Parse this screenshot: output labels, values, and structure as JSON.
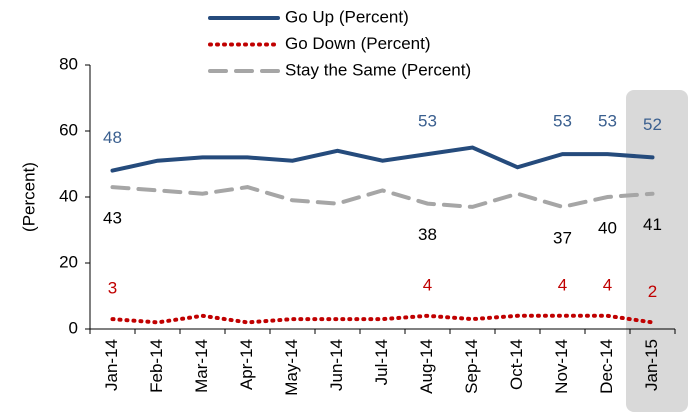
{
  "chart_data": {
    "type": "line",
    "y_label": "(Percent)",
    "categories": [
      "Jan-14",
      "Feb-14",
      "Mar-14",
      "Apr-14",
      "May-14",
      "Jun-14",
      "Jul-14",
      "Aug-14",
      "Sep-14",
      "Oct-14",
      "Nov-14",
      "Dec-14",
      "Jan-15"
    ],
    "series": [
      {
        "name": "Go Up (Percent)",
        "color": "#254b7c",
        "label_color": "#3a5f8f",
        "dash": "solid",
        "values": [
          48,
          51,
          52,
          52,
          51,
          54,
          51,
          53,
          55,
          49,
          53,
          53,
          52
        ]
      },
      {
        "name": "Go Down (Percent)",
        "color": "#c00000",
        "label_color": "#c00000",
        "dash": "dotted",
        "values": [
          3,
          2,
          4,
          2,
          3,
          3,
          3,
          4,
          3,
          4,
          4,
          4,
          2
        ]
      },
      {
        "name": "Stay the Same (Percent)",
        "color": "#a6a6a6",
        "label_color": "#000000",
        "dash": "dashed",
        "values": [
          43,
          42,
          41,
          43,
          39,
          38,
          42,
          38,
          37,
          41,
          37,
          40,
          41
        ]
      }
    ],
    "labeled_points": [
      0,
      7,
      10,
      11,
      12
    ],
    "ylim": [
      0,
      80
    ],
    "yticks": [
      0,
      20,
      40,
      60,
      80
    ],
    "grid": false
  }
}
